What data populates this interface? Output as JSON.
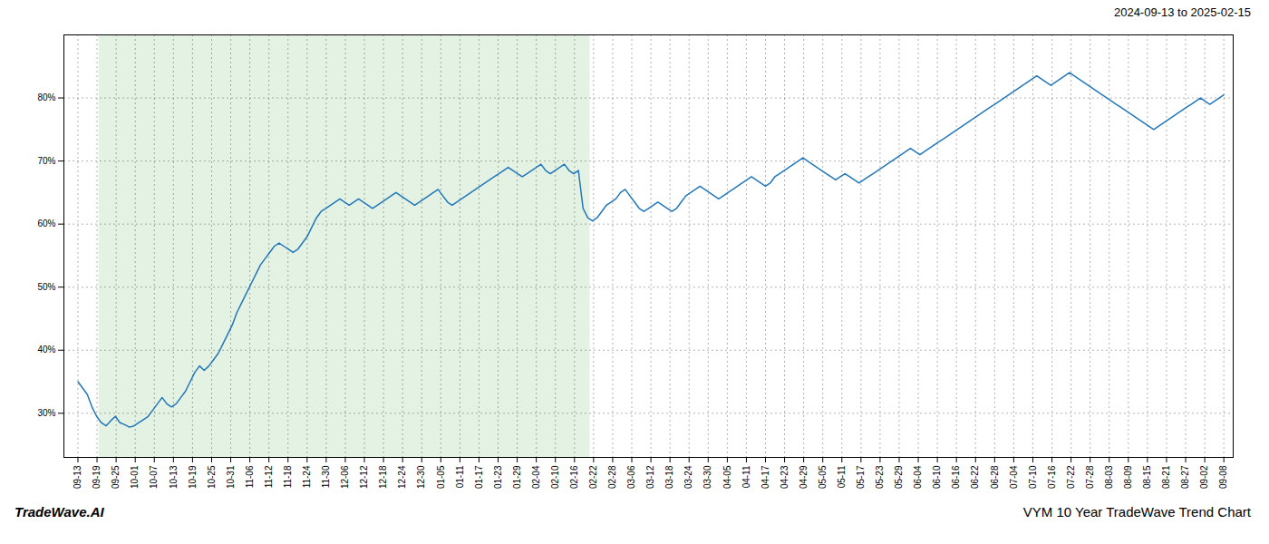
{
  "chart_data": {
    "type": "line",
    "title": "VYM 10 Year TradeWave Trend Chart",
    "subtitle": "2024-09-13 to 2025-02-15",
    "annotation": "TradeWave.AI",
    "color": "#2277BB",
    "line_style": "solid",
    "marker": "none",
    "grid": true,
    "shade": {
      "start": 5,
      "end": 109,
      "color": "#c8e6c8"
    },
    "xlim": [
      -3,
      247
    ],
    "xticks": [
      {
        "value": 0,
        "label": "09-13"
      },
      {
        "value": 4.0833,
        "label": "09-19"
      },
      {
        "value": 8.1667,
        "label": "09-25"
      },
      {
        "value": 12.25,
        "label": "10-01"
      },
      {
        "value": 16.3333,
        "label": "10-07"
      },
      {
        "value": 20.4167,
        "label": "10-13"
      },
      {
        "value": 24.5,
        "label": "10-19"
      },
      {
        "value": 28.5833,
        "label": "10-25"
      },
      {
        "value": 32.6667,
        "label": "10-31"
      },
      {
        "value": 36.75,
        "label": "11-06"
      },
      {
        "value": 40.8333,
        "label": "11-12"
      },
      {
        "value": 44.9167,
        "label": "11-18"
      },
      {
        "value": 49,
        "label": "11-24"
      },
      {
        "value": 53.0833,
        "label": "11-30"
      },
      {
        "value": 57.1667,
        "label": "12-06"
      },
      {
        "value": 61.25,
        "label": "12-12"
      },
      {
        "value": 65.3333,
        "label": "12-18"
      },
      {
        "value": 69.4167,
        "label": "12-24"
      },
      {
        "value": 73.5,
        "label": "12-30"
      },
      {
        "value": 77.5833,
        "label": "01-05"
      },
      {
        "value": 81.6667,
        "label": "01-11"
      },
      {
        "value": 85.75,
        "label": "01-17"
      },
      {
        "value": 89.8333,
        "label": "01-23"
      },
      {
        "value": 93.9167,
        "label": "01-29"
      },
      {
        "value": 98,
        "label": "02-04"
      },
      {
        "value": 102.0833,
        "label": "02-10"
      },
      {
        "value": 106.1667,
        "label": "02-16"
      },
      {
        "value": 110.25,
        "label": "02-22"
      },
      {
        "value": 114.3333,
        "label": "02-28"
      },
      {
        "value": 118.4167,
        "label": "03-06"
      },
      {
        "value": 122.5,
        "label": "03-12"
      },
      {
        "value": 126.5833,
        "label": "03-18"
      },
      {
        "value": 130.6667,
        "label": "03-24"
      },
      {
        "value": 134.75,
        "label": "03-30"
      },
      {
        "value": 138.8333,
        "label": "04-05"
      },
      {
        "value": 142.9167,
        "label": "04-11"
      },
      {
        "value": 147,
        "label": "04-17"
      },
      {
        "value": 151.0833,
        "label": "04-23"
      },
      {
        "value": 155.1667,
        "label": "04-29"
      },
      {
        "value": 159.25,
        "label": "05-05"
      },
      {
        "value": 163.3333,
        "label": "05-11"
      },
      {
        "value": 167.4167,
        "label": "05-17"
      },
      {
        "value": 171.5,
        "label": "05-23"
      },
      {
        "value": 175.5833,
        "label": "05-29"
      },
      {
        "value": 179.6667,
        "label": "06-04"
      },
      {
        "value": 183.75,
        "label": "06-10"
      },
      {
        "value": 187.8333,
        "label": "06-16"
      },
      {
        "value": 191.9167,
        "label": "06-22"
      },
      {
        "value": 196,
        "label": "06-28"
      },
      {
        "value": 200.0833,
        "label": "07-04"
      },
      {
        "value": 204.1667,
        "label": "07-10"
      },
      {
        "value": 208.25,
        "label": "07-16"
      },
      {
        "value": 212.3333,
        "label": "07-22"
      },
      {
        "value": 216.4167,
        "label": "07-28"
      },
      {
        "value": 220.5,
        "label": "08-03"
      },
      {
        "value": 224.5833,
        "label": "08-09"
      },
      {
        "value": 228.6667,
        "label": "08-15"
      },
      {
        "value": 232.75,
        "label": "08-21"
      },
      {
        "value": 236.8333,
        "label": "08-27"
      },
      {
        "value": 240.9167,
        "label": "09-02"
      },
      {
        "value": 245,
        "label": "09-08"
      }
    ],
    "ylim": [
      23,
      90
    ],
    "yticks": [
      {
        "value": 30,
        "label": "30%"
      },
      {
        "value": 40,
        "label": "40%"
      },
      {
        "value": 50,
        "label": "50%"
      },
      {
        "value": 60,
        "label": "60%"
      },
      {
        "value": 70,
        "label": "70%"
      },
      {
        "value": 80,
        "label": "80%"
      }
    ],
    "values": [
      35.0,
      34.0,
      33.0,
      31.0,
      29.5,
      28.5,
      28.0,
      28.8,
      29.5,
      28.5,
      28.2,
      27.8,
      28.0,
      28.5,
      29.0,
      29.5,
      30.5,
      31.5,
      32.5,
      31.5,
      31.0,
      31.5,
      32.5,
      33.5,
      35.0,
      36.5,
      37.5,
      36.8,
      37.5,
      38.5,
      39.5,
      41.0,
      42.5,
      44.0,
      46.0,
      47.5,
      49.0,
      50.5,
      52.0,
      53.5,
      54.5,
      55.5,
      56.5,
      57.0,
      56.5,
      56.0,
      55.5,
      56.0,
      57.0,
      58.0,
      59.5,
      61.0,
      62.0,
      62.5,
      63.0,
      63.5,
      64.0,
      63.5,
      63.0,
      63.5,
      64.0,
      63.5,
      63.0,
      62.5,
      63.0,
      63.5,
      64.0,
      64.5,
      65.0,
      64.5,
      64.0,
      63.5,
      63.0,
      63.5,
      64.0,
      64.5,
      65.0,
      65.5,
      64.5,
      63.5,
      63.0,
      63.5,
      64.0,
      64.5,
      65.0,
      65.5,
      66.0,
      66.5,
      67.0,
      67.5,
      68.0,
      68.5,
      69.0,
      68.5,
      68.0,
      67.5,
      68.0,
      68.5,
      69.0,
      69.5,
      68.5,
      68.0,
      68.5,
      69.0,
      69.5,
      68.5,
      68.0,
      68.5,
      62.5,
      61.0,
      60.5,
      61.0,
      62.0,
      63.0,
      63.5,
      64.0,
      65.0,
      65.5,
      64.5,
      63.5,
      62.5,
      62.0,
      62.5,
      63.0,
      63.5,
      63.0,
      62.5,
      62.0,
      62.5,
      63.5,
      64.5,
      65.0,
      65.5,
      66.0,
      65.5,
      65.0,
      64.5,
      64.0,
      64.5,
      65.0,
      65.5,
      66.0,
      66.5,
      67.0,
      67.5,
      67.0,
      66.5,
      66.0,
      66.5,
      67.5,
      68.0,
      68.5,
      69.0,
      69.5,
      70.0,
      70.5,
      70.0,
      69.5,
      69.0,
      68.5,
      68.0,
      67.5,
      67.0,
      67.5,
      68.0,
      67.5,
      67.0,
      66.5,
      67.0,
      67.5,
      68.0,
      68.5,
      69.0,
      69.5,
      70.0,
      70.5,
      71.0,
      71.5,
      72.0,
      71.5,
      71.0,
      71.5,
      72.0,
      72.5,
      73.0,
      73.5,
      74.0,
      74.5,
      75.0,
      75.5,
      76.0,
      76.5,
      77.0,
      77.5,
      78.0,
      78.5,
      79.0,
      79.5,
      80.0,
      80.5,
      81.0,
      81.5,
      82.0,
      82.5,
      83.0,
      83.5,
      83.0,
      82.5,
      82.0,
      82.5,
      83.0,
      83.5,
      84.0,
      83.5,
      83.0,
      82.5,
      82.0,
      81.5,
      81.0,
      80.5,
      80.0,
      79.5,
      79.0,
      78.5,
      78.0,
      77.5,
      77.0,
      76.5,
      76.0,
      75.5,
      75.0,
      75.5,
      76.0,
      76.5,
      77.0,
      77.5,
      78.0,
      78.5,
      79.0,
      79.5,
      80.0,
      79.5,
      79.0,
      79.5,
      80.0,
      80.5
    ]
  }
}
